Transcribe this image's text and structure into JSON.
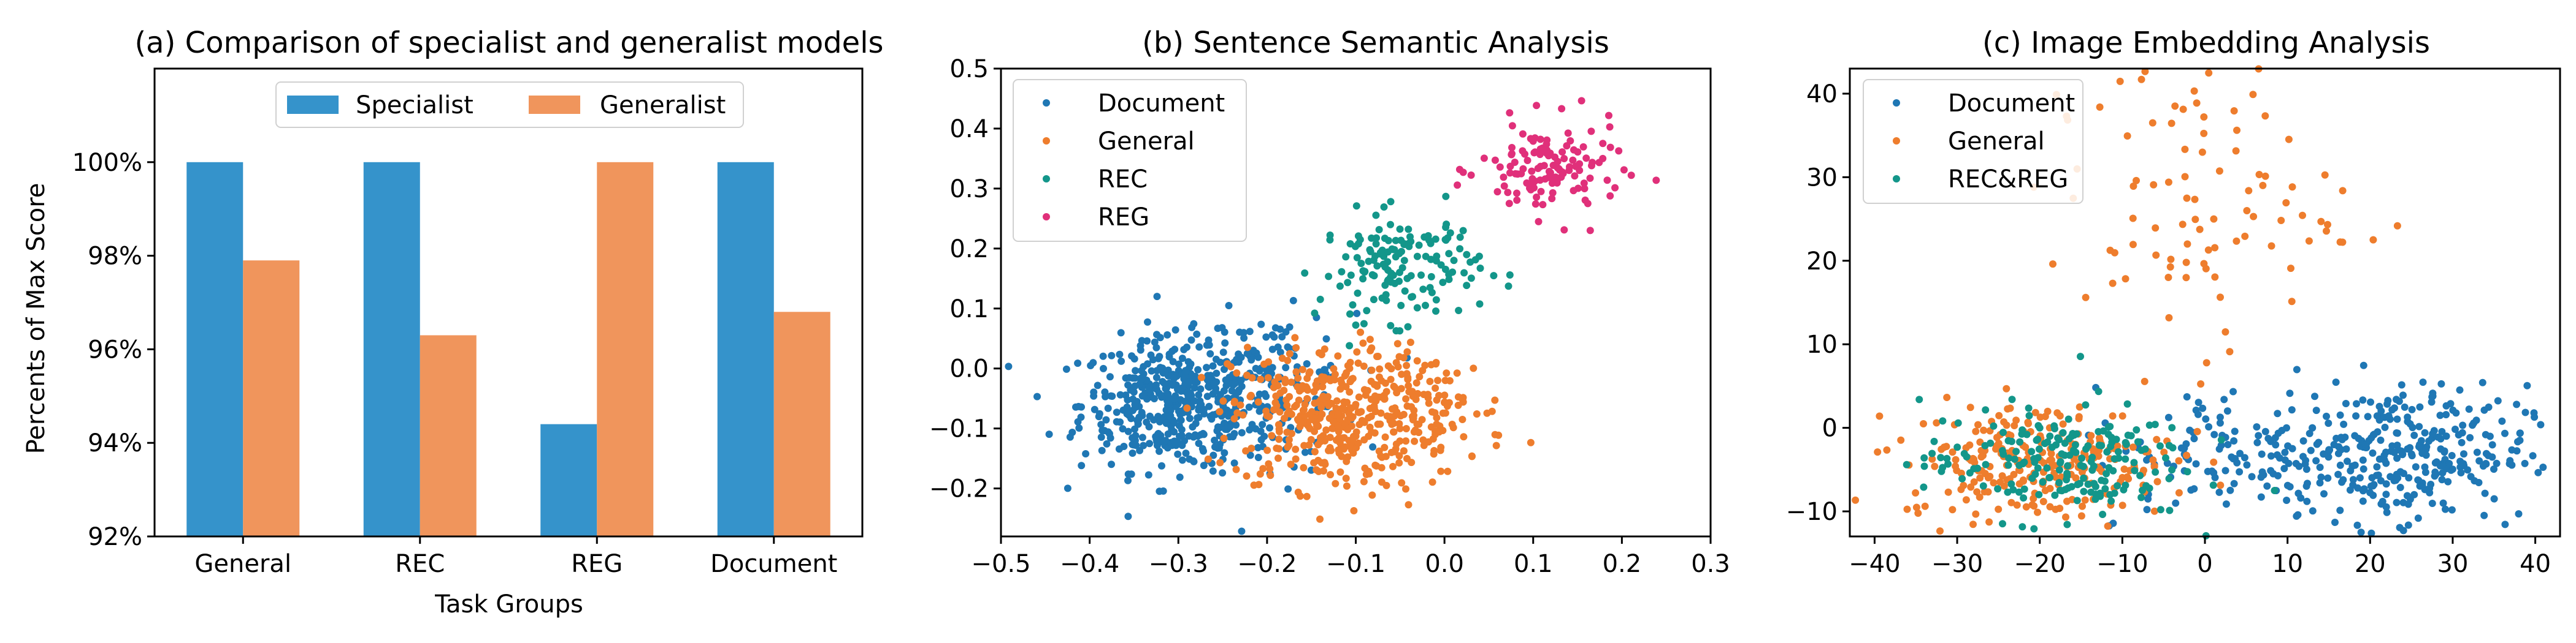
{
  "chart_data": [
    {
      "type": "bar",
      "title": "(a) Comparison of specialist and generalist models",
      "xlabel": "Task Groups",
      "ylabel": "Percents of Max Score",
      "categories": [
        "General",
        "REC",
        "REG",
        "Document"
      ],
      "series": [
        {
          "name": "Specialist",
          "values": [
            100,
            100,
            94.4,
            100
          ],
          "color": "#3593cb"
        },
        {
          "name": "Generalist",
          "values": [
            97.9,
            96.3,
            100,
            96.8
          ],
          "color": "#f0955c"
        }
      ],
      "ylim": [
        92,
        102
      ],
      "yticks": [
        92,
        94,
        96,
        98,
        100
      ],
      "ytick_labels": [
        "92%",
        "94%",
        "96%",
        "98%",
        "100%"
      ],
      "legend_position": "top-center",
      "grid": false
    },
    {
      "type": "scatter",
      "title": "(b) Sentence Semantic Analysis",
      "xlabel": "",
      "ylabel": "",
      "xlim": [
        -0.5,
        0.3
      ],
      "ylim": [
        -0.28,
        0.5
      ],
      "xticks": [
        -0.5,
        -0.4,
        -0.3,
        -0.2,
        -0.1,
        0.0,
        0.1,
        0.2,
        0.3
      ],
      "xtick_labels": [
        "−0.5",
        "−0.4",
        "−0.3",
        "−0.2",
        "−0.1",
        "0.0",
        "0.1",
        "0.2",
        "0.3"
      ],
      "yticks": [
        -0.2,
        -0.1,
        0.0,
        0.1,
        0.2,
        0.3,
        0.4,
        0.5
      ],
      "ytick_labels": [
        "−0.2",
        "−0.1",
        "0.0",
        "0.1",
        "0.2",
        "0.3",
        "0.4",
        "0.5"
      ],
      "legend_position": "top-left",
      "grid": false,
      "series": [
        {
          "name": "Document",
          "color": "#1f77b4",
          "clusters": [
            {
              "cx": -0.3,
              "cy": -0.06,
              "sx": 0.055,
              "sy": 0.055,
              "n": 460
            },
            {
              "cx": -0.2,
              "cy": -0.03,
              "sx": 0.05,
              "sy": 0.06,
              "n": 140
            }
          ]
        },
        {
          "name": "General",
          "color": "#ee7d2d",
          "clusters": [
            {
              "cx": -0.13,
              "cy": -0.08,
              "sx": 0.055,
              "sy": 0.06,
              "n": 380
            },
            {
              "cx": -0.02,
              "cy": -0.07,
              "sx": 0.045,
              "sy": 0.05,
              "n": 110
            }
          ]
        },
        {
          "name": "REC",
          "color": "#13968a",
          "clusters": [
            {
              "cx": -0.05,
              "cy": 0.17,
              "sx": 0.045,
              "sy": 0.045,
              "n": 150
            }
          ]
        },
        {
          "name": "REG",
          "color": "#e0307a",
          "clusters": [
            {
              "cx": 0.12,
              "cy": 0.33,
              "sx": 0.04,
              "sy": 0.04,
              "n": 130
            }
          ]
        }
      ]
    },
    {
      "type": "scatter",
      "title": "(c) Image Embedding Analysis",
      "xlabel": "",
      "ylabel": "",
      "xlim": [
        -43,
        43
      ],
      "ylim": [
        -13,
        43
      ],
      "xticks": [
        -40,
        -30,
        -20,
        -10,
        0,
        10,
        20,
        30,
        40
      ],
      "xtick_labels": [
        "−40",
        "−30",
        "−20",
        "−10",
        "0",
        "10",
        "20",
        "30",
        "40"
      ],
      "yticks": [
        -10,
        0,
        10,
        20,
        30,
        40
      ],
      "ytick_labels": [
        "−10",
        "0",
        "10",
        "20",
        "30",
        "40"
      ],
      "legend_position": "top-left",
      "grid": false,
      "series": [
        {
          "name": "Document",
          "color": "#1f77b4",
          "clusters": [
            {
              "cx": 23,
              "cy": -3,
              "sx": 8,
              "sy": 4,
              "n": 330
            },
            {
              "cx": 2,
              "cy": -3,
              "sx": 8,
              "sy": 4,
              "n": 90
            }
          ]
        },
        {
          "name": "General",
          "color": "#ee7d2d",
          "clusters": [
            {
              "cx": -20,
              "cy": -4,
              "sx": 8,
              "sy": 3.5,
              "n": 260
            },
            {
              "cx": -2,
              "cy": 28,
              "sx": 9,
              "sy": 9,
              "n": 100
            }
          ]
        },
        {
          "name": "REC&REG",
          "color": "#13968a",
          "clusters": [
            {
              "cx": -18,
              "cy": -4,
              "sx": 8,
              "sy": 3.5,
              "n": 200
            }
          ]
        }
      ]
    }
  ]
}
